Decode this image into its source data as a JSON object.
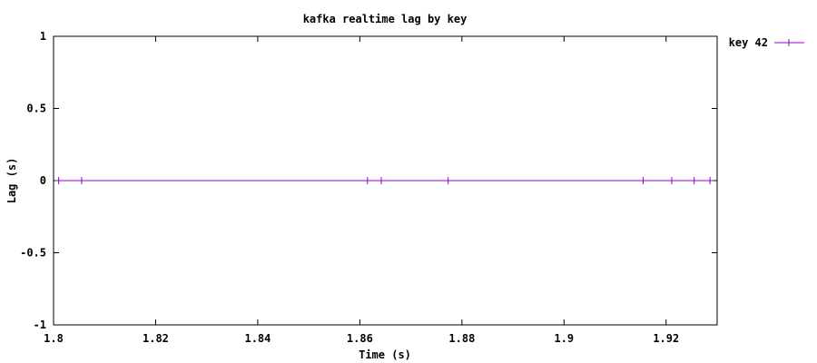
{
  "colors": {
    "background": "#ffffff",
    "axis": "#000000",
    "series": "#9400d3"
  },
  "chart_data": {
    "type": "line",
    "title": "kafka realtime lag by key",
    "xlabel": "Time (s)",
    "ylabel": "Lag (s)",
    "xlim": [
      1.8,
      1.93
    ],
    "ylim": [
      -1,
      1
    ],
    "x_ticks": [
      1.8,
      1.82,
      1.84,
      1.86,
      1.88,
      1.9,
      1.92
    ],
    "x_tick_labels": [
      "1.8",
      "1.82",
      "1.84",
      "1.86",
      "1.88",
      "1.9",
      "1.92"
    ],
    "y_ticks": [
      1,
      0.5,
      0,
      -0.5,
      -1
    ],
    "y_tick_labels": [
      "1",
      "0.5",
      "0",
      "-0.5",
      "-1"
    ],
    "grid": false,
    "legend_position": "outside-top-right",
    "series": [
      {
        "name": "key 42",
        "x": [
          1.801,
          1.8055,
          1.8615,
          1.8642,
          1.8773,
          1.9155,
          1.9211,
          1.9255,
          1.9286
        ],
        "y": [
          0,
          0,
          0,
          0,
          0,
          0,
          0,
          0,
          0
        ]
      }
    ]
  }
}
